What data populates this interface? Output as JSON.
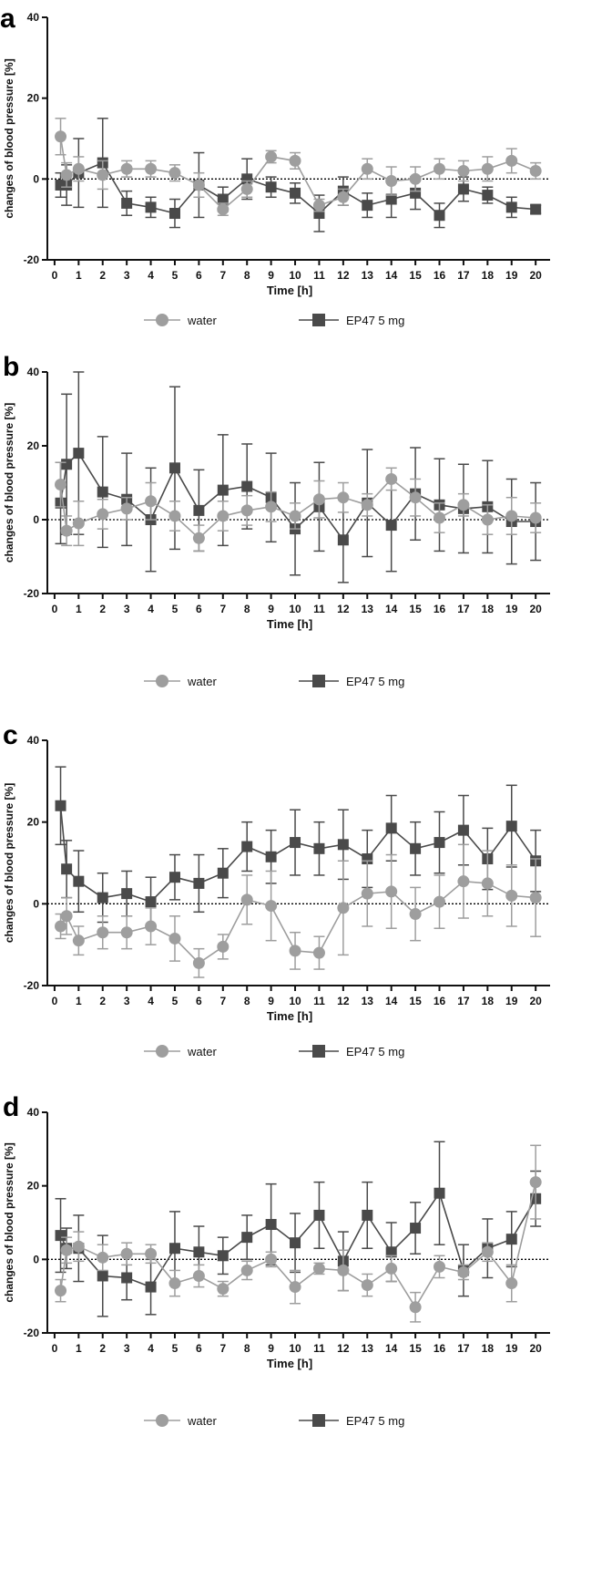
{
  "colors": {
    "water": "#9e9e9e",
    "ep47": "#4a4a4a",
    "axis": "#111111"
  },
  "chart_data": [
    {
      "panel_label": "a",
      "type": "line",
      "xlabel": "Time [h]",
      "ylabel": "changes of blood pressure [%]",
      "xlim": [
        -0.3,
        20.6
      ],
      "ylim": [
        -20,
        40
      ],
      "xticks": [
        0,
        1,
        2,
        3,
        4,
        5,
        6,
        7,
        8,
        9,
        10,
        11,
        12,
        13,
        14,
        15,
        16,
        17,
        18,
        19,
        20
      ],
      "yticks": [
        -20,
        0,
        20,
        40
      ],
      "reference_line": 0,
      "legend_position": "bottom-center",
      "series": [
        {
          "name": "water",
          "marker": "circle",
          "x": [
            0.25,
            0.5,
            1,
            2,
            3,
            4,
            5,
            6,
            7,
            8,
            9,
            10,
            11,
            12,
            13,
            14,
            15,
            16,
            17,
            18,
            19,
            20
          ],
          "y": [
            10.5,
            1,
            2.5,
            1,
            2.5,
            2.5,
            1.5,
            -1.5,
            -7.5,
            -2.5,
            5.5,
            4.5,
            -6.5,
            -4.5,
            2.5,
            -0.5,
            0,
            2.5,
            2,
            2.5,
            4.5,
            2
          ],
          "err": [
            4.5,
            3,
            3,
            3.5,
            2,
            2,
            2,
            3,
            1.5,
            2,
            1.5,
            2,
            1.5,
            2,
            2.5,
            3.5,
            3,
            2.5,
            2.5,
            3,
            3,
            2
          ]
        },
        {
          "name": "EP47 5 mg",
          "marker": "square",
          "x": [
            0.25,
            0.5,
            1,
            2,
            3,
            4,
            5,
            6,
            7,
            8,
            9,
            10,
            11,
            12,
            13,
            14,
            15,
            16,
            17,
            18,
            19,
            20
          ],
          "y": [
            -1.5,
            -1.5,
            1.5,
            4,
            -6,
            -7,
            -8.5,
            -1.5,
            -5,
            0,
            -2,
            -3.5,
            -8.5,
            -3,
            -6.5,
            -5,
            -3.5,
            -9,
            -2.5,
            -4,
            -7,
            -7.5
          ],
          "err": [
            3,
            5,
            8.5,
            11,
            3,
            2.5,
            3.5,
            8,
            3,
            5,
            2.5,
            2.5,
            4.5,
            3.5,
            3,
            4.5,
            4,
            3,
            3,
            2,
            2.5,
            1
          ]
        }
      ]
    },
    {
      "panel_label": "b",
      "type": "line",
      "xlabel": "Time [h]",
      "ylabel": "changes of blood pressure [%]",
      "xlim": [
        -0.3,
        20.6
      ],
      "ylim": [
        -20,
        40
      ],
      "xticks": [
        0,
        1,
        2,
        3,
        4,
        5,
        6,
        7,
        8,
        9,
        10,
        11,
        12,
        13,
        14,
        15,
        16,
        17,
        18,
        19,
        20
      ],
      "yticks": [
        -20,
        0,
        20,
        40
      ],
      "reference_line": 0,
      "legend_position": "bottom-center",
      "series": [
        {
          "name": "water",
          "marker": "circle",
          "x": [
            0.25,
            0.5,
            1,
            2,
            3,
            4,
            5,
            6,
            7,
            8,
            9,
            10,
            11,
            12,
            13,
            14,
            15,
            16,
            17,
            18,
            19,
            20
          ],
          "y": [
            9.5,
            -3,
            -1,
            1.5,
            3,
            5,
            1,
            -5,
            1,
            2.5,
            3.5,
            1,
            5.5,
            6,
            4,
            11,
            6,
            0.5,
            4,
            0,
            1,
            0.5
          ],
          "err": [
            6,
            4,
            6,
            4,
            3,
            5,
            4,
            3.5,
            4,
            4,
            4,
            3.5,
            5,
            4,
            3,
            3,
            5,
            4,
            3,
            4,
            5,
            4
          ]
        },
        {
          "name": "EP47 5 mg",
          "marker": "square",
          "x": [
            0.25,
            0.5,
            1,
            2,
            3,
            4,
            5,
            6,
            7,
            8,
            9,
            10,
            11,
            12,
            13,
            14,
            15,
            16,
            17,
            18,
            19,
            20
          ],
          "y": [
            4.5,
            15,
            18,
            7.5,
            5.5,
            0,
            14,
            2.5,
            8,
            9,
            6,
            -2.5,
            3.5,
            -5.5,
            4.5,
            -1.5,
            7,
            4,
            3,
            3.5,
            -0.5,
            -0.5
          ],
          "err": [
            11,
            19,
            22,
            15,
            12.5,
            14,
            22,
            11,
            15,
            11.5,
            12,
            12.5,
            12,
            11.5,
            14.5,
            12.5,
            12.5,
            12.5,
            12,
            12.5,
            11.5,
            10.5
          ]
        }
      ]
    },
    {
      "panel_label": "c",
      "type": "line",
      "xlabel": "Time [h]",
      "ylabel": "changes of blood pressure [%]",
      "xlim": [
        -0.3,
        20.6
      ],
      "ylim": [
        -20,
        40
      ],
      "xticks": [
        0,
        1,
        2,
        3,
        4,
        5,
        6,
        7,
        8,
        9,
        10,
        11,
        12,
        13,
        14,
        15,
        16,
        17,
        18,
        19,
        20
      ],
      "yticks": [
        -20,
        0,
        20,
        40
      ],
      "reference_line": 0,
      "legend_position": "bottom-center",
      "series": [
        {
          "name": "water",
          "marker": "circle",
          "x": [
            0.25,
            0.5,
            1,
            2,
            3,
            4,
            5,
            6,
            7,
            8,
            9,
            10,
            11,
            12,
            13,
            14,
            15,
            16,
            17,
            18,
            19,
            20
          ],
          "y": [
            -5.5,
            -3,
            -9,
            -7,
            -7,
            -5.5,
            -8.5,
            -14.5,
            -10.5,
            1,
            -0.5,
            -11.5,
            -12,
            -1,
            2.5,
            3,
            -2.5,
            0.5,
            5.5,
            5,
            2,
            1.5
          ],
          "err": [
            3,
            4.5,
            3.5,
            4,
            4,
            4.5,
            5.5,
            3.5,
            3,
            6,
            8.5,
            4.5,
            4,
            11.5,
            8,
            9,
            6.5,
            6.5,
            9,
            8,
            7.5,
            9.5
          ]
        },
        {
          "name": "EP47 5 mg",
          "marker": "square",
          "x": [
            0.25,
            0.5,
            1,
            2,
            3,
            4,
            5,
            6,
            7,
            8,
            9,
            10,
            11,
            12,
            13,
            14,
            15,
            16,
            17,
            18,
            19,
            20
          ],
          "y": [
            24,
            8.5,
            5.5,
            1.5,
            2.5,
            0.5,
            6.5,
            5,
            7.5,
            14,
            11.5,
            15,
            13.5,
            14.5,
            11,
            18.5,
            13.5,
            15,
            18,
            11,
            19,
            10.5
          ],
          "err": [
            9.5,
            7,
            7.5,
            6,
            5.5,
            6,
            5.5,
            7,
            6,
            6,
            6.5,
            8,
            6.5,
            8.5,
            7,
            8,
            6.5,
            7.5,
            8.5,
            7.5,
            10,
            7.5
          ]
        }
      ]
    },
    {
      "panel_label": "d",
      "type": "line",
      "xlabel": "Time [h]",
      "ylabel": "changes of blood pressure [%]",
      "xlim": [
        -0.3,
        20.6
      ],
      "ylim": [
        -20,
        40
      ],
      "xticks": [
        0,
        1,
        2,
        3,
        4,
        5,
        6,
        7,
        8,
        9,
        10,
        11,
        12,
        13,
        14,
        15,
        16,
        17,
        18,
        19,
        20
      ],
      "yticks": [
        -20,
        0,
        20,
        40
      ],
      "reference_line": 0,
      "legend_position": "bottom-center",
      "series": [
        {
          "name": "water",
          "marker": "circle",
          "x": [
            0.25,
            0.5,
            1,
            2,
            3,
            4,
            5,
            6,
            7,
            8,
            9,
            10,
            11,
            12,
            13,
            14,
            15,
            16,
            17,
            18,
            19,
            20
          ],
          "y": [
            -8.5,
            2.5,
            3.5,
            0.5,
            1.5,
            1.5,
            -6.5,
            -4.5,
            -8,
            -3,
            0,
            -7.5,
            -2.5,
            -3,
            -7,
            -2.5,
            -13,
            -2,
            -3.5,
            2,
            -6.5,
            21
          ],
          "err": [
            3,
            3.5,
            4,
            3.5,
            3,
            2.5,
            3.5,
            3,
            2,
            2.5,
            2,
            4.5,
            1.5,
            5.5,
            3,
            3.5,
            4,
            3,
            2,
            2.5,
            5,
            10
          ]
        },
        {
          "name": "EP47 5 mg",
          "marker": "square",
          "x": [
            0.25,
            0.5,
            1,
            2,
            3,
            4,
            5,
            6,
            7,
            8,
            9,
            10,
            11,
            12,
            13,
            14,
            15,
            16,
            17,
            18,
            19,
            20
          ],
          "y": [
            6.5,
            3,
            3,
            -4.5,
            -5,
            -7.5,
            3,
            2,
            1,
            6,
            9.5,
            4.5,
            12,
            -0.5,
            12,
            2,
            8.5,
            18,
            -3,
            3,
            5.5,
            16.5
          ],
          "err": [
            10,
            5.5,
            9,
            11,
            6,
            7.5,
            10,
            7,
            5,
            6,
            11,
            8,
            9,
            8,
            9,
            8,
            7,
            14,
            7,
            8,
            7.5,
            7.5
          ]
        }
      ]
    }
  ]
}
